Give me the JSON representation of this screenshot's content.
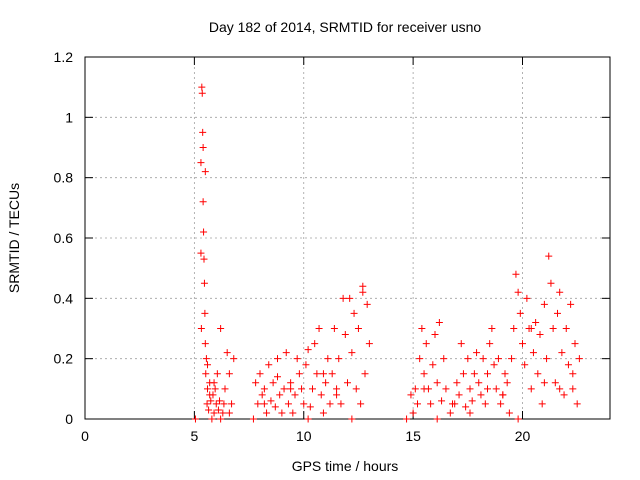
{
  "chart_data": {
    "type": "scatter",
    "title": "Day 182 of 2014, SRMTID for receiver usno",
    "xlabel": "GPS time / hours",
    "ylabel": "SRMTID / TECUs",
    "xlim": [
      0,
      24
    ],
    "ylim": [
      0,
      1.2
    ],
    "xticks": [
      0,
      5,
      10,
      15,
      20
    ],
    "xtick_labels": [
      "0",
      "5",
      "10",
      "15",
      "20"
    ],
    "yticks": [
      0,
      0.2,
      0.4,
      0.6,
      0.8,
      1.0,
      1.2
    ],
    "ytick_labels": [
      "0",
      "0.2",
      "0.4",
      "0.6",
      "0.8",
      "1",
      "1.2"
    ],
    "grid": true,
    "marker": "+",
    "color": "#ff0000",
    "series": [
      {
        "name": "SRMTID",
        "x": [
          5.05,
          5.3,
          5.3,
          5.32,
          5.34,
          5.36,
          5.38,
          5.4,
          5.42,
          5.44,
          5.46,
          5.48,
          5.5,
          5.52,
          5.55,
          5.58,
          5.6,
          5.65,
          5.7,
          5.75,
          5.8,
          5.85,
          5.9,
          5.95,
          6.0,
          6.05,
          6.1,
          6.15,
          6.2,
          6.3,
          6.35,
          6.4,
          6.5,
          6.6,
          6.7,
          6.8,
          5.4,
          5.5,
          5.6,
          5.7,
          5.9,
          6.2,
          6.6,
          7.7,
          7.8,
          7.9,
          8.0,
          8.1,
          8.2,
          8.3,
          8.4,
          8.5,
          8.6,
          8.7,
          8.8,
          8.9,
          9.0,
          9.1,
          9.2,
          9.3,
          9.4,
          9.5,
          9.6,
          9.7,
          9.8,
          9.9,
          10.0,
          10.1,
          10.2,
          10.3,
          10.4,
          10.5,
          10.6,
          10.7,
          10.8,
          10.9,
          11.0,
          11.1,
          11.2,
          11.3,
          11.4,
          11.5,
          11.6,
          11.7,
          11.8,
          11.9,
          12.0,
          12.1,
          12.2,
          12.3,
          12.4,
          12.5,
          12.6,
          12.7,
          12.8,
          12.9,
          13.0,
          8.2,
          8.8,
          9.4,
          10.2,
          10.9,
          11.5,
          12.2,
          12.7,
          14.7,
          14.9,
          15.0,
          15.1,
          15.2,
          15.3,
          15.4,
          15.5,
          15.6,
          15.7,
          15.8,
          15.9,
          16.0,
          16.1,
          16.2,
          16.3,
          16.4,
          16.5,
          16.7,
          16.9,
          17.0,
          17.1,
          17.2,
          17.3,
          17.4,
          17.5,
          17.6,
          17.7,
          17.8,
          17.9,
          18.0,
          18.1,
          18.2,
          18.3,
          18.4,
          18.5,
          18.6,
          18.7,
          18.8,
          18.9,
          19.0,
          19.1,
          19.2,
          19.3,
          19.4,
          19.5,
          19.6,
          19.7,
          19.8,
          19.9,
          20.0,
          20.1,
          20.2,
          20.3,
          20.4,
          20.5,
          20.6,
          20.7,
          20.8,
          20.9,
          21.0,
          21.1,
          21.2,
          21.3,
          21.4,
          21.5,
          21.6,
          21.7,
          21.8,
          21.9,
          22.0,
          22.1,
          22.2,
          22.3,
          22.4,
          22.5,
          22.6,
          15.5,
          16.1,
          16.8,
          17.6,
          18.4,
          19.1,
          19.8,
          20.4,
          21.0,
          21.7,
          22.3
        ],
        "y": [
          0.0,
          0.85,
          0.55,
          0.3,
          1.1,
          1.08,
          0.95,
          0.72,
          0.62,
          0.53,
          0.45,
          0.35,
          0.25,
          0.15,
          0.2,
          0.05,
          0.1,
          0.03,
          0.12,
          0.06,
          0.0,
          0.08,
          0.02,
          0.1,
          0.05,
          0.15,
          0.03,
          0.06,
          0.3,
          0.02,
          0.05,
          0.1,
          0.22,
          0.15,
          0.05,
          0.2,
          0.9,
          0.82,
          0.18,
          0.08,
          0.12,
          0.0,
          0.02,
          0.0,
          0.12,
          0.05,
          0.15,
          0.08,
          0.1,
          0.02,
          0.18,
          0.06,
          0.12,
          0.04,
          0.14,
          0.08,
          0.02,
          0.1,
          0.22,
          0.05,
          0.12,
          0.02,
          0.08,
          0.2,
          0.15,
          0.1,
          0.05,
          0.18,
          0.23,
          0.04,
          0.1,
          0.25,
          0.15,
          0.3,
          0.08,
          0.02,
          0.12,
          0.2,
          0.05,
          0.15,
          0.3,
          0.1,
          0.2,
          0.05,
          0.4,
          0.28,
          0.12,
          0.4,
          0.22,
          0.35,
          0.1,
          0.3,
          0.05,
          0.42,
          0.15,
          0.38,
          0.25,
          0.05,
          0.2,
          0.1,
          0.0,
          0.15,
          0.08,
          0.0,
          0.44,
          0.0,
          0.08,
          0.02,
          0.1,
          0.05,
          0.2,
          0.3,
          0.15,
          0.25,
          0.1,
          0.05,
          0.18,
          0.28,
          0.12,
          0.32,
          0.06,
          0.2,
          0.1,
          0.02,
          0.05,
          0.12,
          0.08,
          0.25,
          0.15,
          0.04,
          0.2,
          0.1,
          0.06,
          0.15,
          0.22,
          0.12,
          0.08,
          0.2,
          0.05,
          0.15,
          0.25,
          0.3,
          0.18,
          0.1,
          0.2,
          0.05,
          0.08,
          0.15,
          0.12,
          0.02,
          0.2,
          0.3,
          0.48,
          0.42,
          0.35,
          0.25,
          0.18,
          0.4,
          0.3,
          0.1,
          0.22,
          0.32,
          0.15,
          0.28,
          0.05,
          0.38,
          0.2,
          0.54,
          0.45,
          0.3,
          0.12,
          0.35,
          0.42,
          0.22,
          0.08,
          0.3,
          0.18,
          0.38,
          0.1,
          0.25,
          0.05,
          0.2,
          0.1,
          0.0,
          0.05,
          0.02,
          0.1,
          0.08,
          0.0,
          0.3,
          0.12,
          0.1,
          0.15
        ]
      }
    ]
  }
}
